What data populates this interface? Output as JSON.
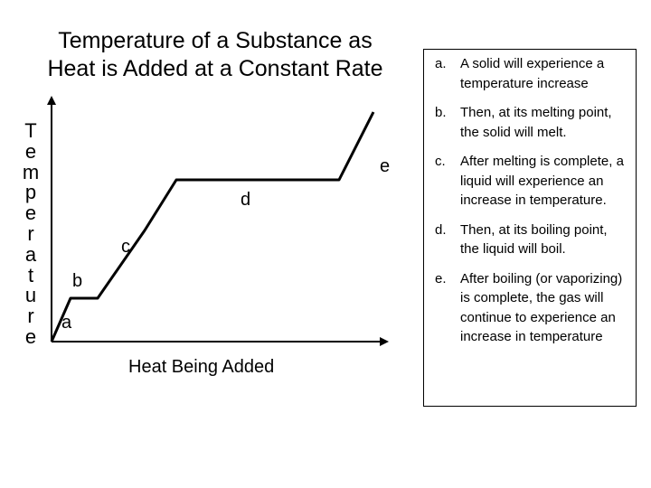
{
  "title": {
    "line1": "Temperature of a Substance as",
    "line2": "Heat is Added at a Constant Rate"
  },
  "y_axis_label": [
    "T",
    "e",
    "m",
    "p",
    "e",
    "r",
    "a",
    "t",
    "u",
    "r",
    "e"
  ],
  "x_axis_label": "Heat Being Added",
  "segments": [
    {
      "id": "a",
      "label": "a"
    },
    {
      "id": "b",
      "label": "b"
    },
    {
      "id": "c",
      "label": "c"
    },
    {
      "id": "d",
      "label": "d"
    },
    {
      "id": "e",
      "label": "e"
    }
  ],
  "legend": [
    {
      "marker": "a.",
      "text": "A solid will experience a temperature increase"
    },
    {
      "marker": "b.",
      "text": "Then, at its melting point, the solid will melt."
    },
    {
      "marker": "c.",
      "text": "After melting is complete, a liquid will experience an increase in temperature."
    },
    {
      "marker": "d.",
      "text": "Then, at its boiling point, the liquid will boil."
    },
    {
      "marker": "e.",
      "text": "After boiling (or vaporizing) is complete, the gas will continue to experience an increase in temperature"
    }
  ]
}
